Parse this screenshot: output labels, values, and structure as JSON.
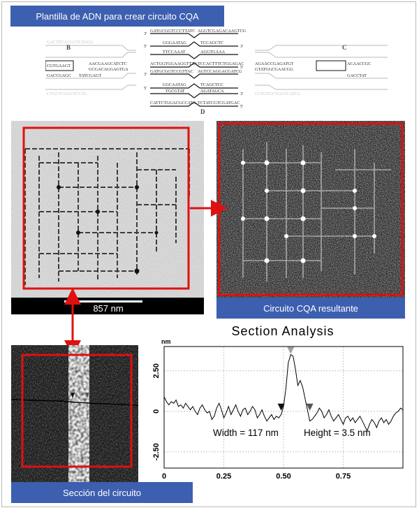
{
  "titles": {
    "template": "Plantilla de ADN para crear circuito CQA",
    "result": "Circuito CQA resultante",
    "section": "Sección del circuito"
  },
  "dna": {
    "tile_labels": [
      "B",
      "C",
      "D"
    ],
    "strand_ends": [
      "3'",
      "5'"
    ],
    "sequences_top": [
      "GATGCGGTCCCTTATC",
      "AGGTCGAGACAAGTCG",
      "GGGAATAG",
      "TCCAGCTC",
      "TTCCAAAT",
      "AGGTGAAA",
      "ACTGGTGGAAGGTTTA",
      "TCCACTTTCTGGAGAC"
    ],
    "sequences_left": [
      "GACTTCACGCTGTAGG",
      "CGTGAAGT",
      "GACCGAGC",
      "TATCGAGT",
      "CTGCTCGGCTCCTG"
    ],
    "sequences_middle_left": [
      "AACGAAGCATCTC",
      "GCGACAGGAGTGA"
    ],
    "sequences_center": [
      "GATGCGGTCCGTTAC",
      "AGTCCAGGACGATCG",
      "GGCAATAG",
      "TCAGCTCC",
      "TGCGTAT",
      "AGATAGCA",
      "CATTCTGGACGCCATA",
      "TCTATCGTCGATGAC"
    ],
    "sequences_right": [
      "AGAACCGAGATGT",
      "GTATGGCGAACGG",
      "CCTGTGCTGGTCATCG",
      "ACAACCGC",
      "GACCTAT"
    ]
  },
  "micrographs": {
    "scale_label": "857 nm"
  },
  "chart_data": {
    "type": "line",
    "title": "Section Analysis",
    "unit_label": "nm",
    "xlim": [
      0,
      1.0
    ],
    "ylim": [
      -3.5,
      4.0
    ],
    "xticks": [
      "0",
      "0.25",
      "0.50",
      "0.75"
    ],
    "xtick_values": [
      0,
      0.25,
      0.5,
      0.75
    ],
    "yticks": [
      "2.50",
      "0",
      "-2.50"
    ],
    "ytick_values": [
      2.5,
      0,
      -2.5
    ],
    "grid": true,
    "x": [
      0.0,
      0.01,
      0.02,
      0.03,
      0.04,
      0.05,
      0.06,
      0.07,
      0.08,
      0.09,
      0.1,
      0.11,
      0.12,
      0.13,
      0.14,
      0.15,
      0.16,
      0.17,
      0.18,
      0.19,
      0.2,
      0.21,
      0.22,
      0.23,
      0.24,
      0.25,
      0.26,
      0.27,
      0.28,
      0.29,
      0.3,
      0.31,
      0.32,
      0.33,
      0.34,
      0.35,
      0.36,
      0.37,
      0.38,
      0.39,
      0.4,
      0.41,
      0.42,
      0.43,
      0.44,
      0.45,
      0.46,
      0.47,
      0.48,
      0.49,
      0.5,
      0.51,
      0.52,
      0.53,
      0.54,
      0.55,
      0.56,
      0.57,
      0.58,
      0.59,
      0.6,
      0.61,
      0.62,
      0.63,
      0.64,
      0.65,
      0.66,
      0.67,
      0.68,
      0.69,
      0.7,
      0.71,
      0.72,
      0.73,
      0.74,
      0.75,
      0.76,
      0.77,
      0.78,
      0.79,
      0.8,
      0.81,
      0.82,
      0.83,
      0.84,
      0.85,
      0.86,
      0.87,
      0.88,
      0.89,
      0.9,
      0.91,
      0.92,
      0.93,
      0.94,
      0.95,
      0.96,
      0.97,
      0.98,
      0.99,
      1.0
    ],
    "y": [
      0.9,
      0.6,
      0.4,
      0.6,
      0.5,
      0.7,
      0.3,
      0.4,
      0.2,
      0.5,
      0.3,
      0.1,
      0.3,
      0.0,
      -0.2,
      0.2,
      0.4,
      0.1,
      -0.1,
      0.0,
      -0.5,
      -0.3,
      0.2,
      0.5,
      0.1,
      -0.4,
      -0.1,
      0.3,
      -0.2,
      0.1,
      0.4,
      0.0,
      -0.3,
      0.1,
      0.2,
      -0.2,
      0.0,
      0.3,
      0.1,
      -0.4,
      -0.2,
      0.1,
      -0.3,
      -0.6,
      -0.4,
      -0.2,
      -0.5,
      -0.3,
      -0.4,
      -0.2,
      0.3,
      1.4,
      3.0,
      3.5,
      3.4,
      2.6,
      1.6,
      1.9,
      1.5,
      0.8,
      0.1,
      -0.6,
      -0.5,
      -0.3,
      -0.1,
      0.2,
      0.0,
      -0.4,
      -0.2,
      0.1,
      -0.3,
      -0.6,
      -0.4,
      -0.2,
      -0.5,
      -0.8,
      -0.4,
      -0.3,
      -0.6,
      -0.4,
      -0.7,
      -0.5,
      -0.3,
      -0.6,
      -0.9,
      -1.2,
      -0.8,
      -0.5,
      -0.7,
      -1.0,
      -0.6,
      -0.4,
      -0.7,
      -0.5,
      -0.8,
      -0.6,
      -0.3,
      -0.1,
      0.0,
      0.2,
      0.1
    ],
    "markers": [
      {
        "x": 0.49,
        "y": 0.0,
        "color": "#111111",
        "direction": "down"
      },
      {
        "x": 0.53,
        "y": 3.5,
        "color": "#a0a0a0",
        "direction": "down"
      },
      {
        "x": 0.61,
        "y": 0.0,
        "color": "#555555",
        "direction": "down"
      }
    ],
    "annotations": {
      "width": "Width = 117 nm",
      "height": "Height = 3.5 nm"
    }
  },
  "colors": {
    "label_blue": "#3d5fb0",
    "highlight_red": "#e01010"
  }
}
